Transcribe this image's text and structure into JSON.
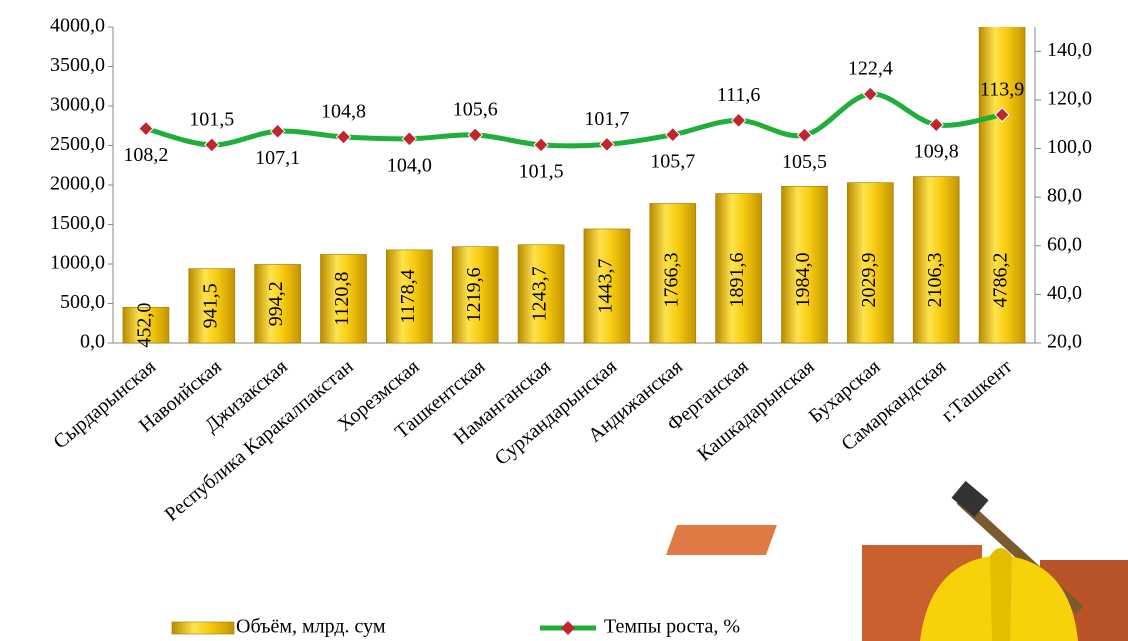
{
  "chart_data": {
    "type": "bar-line",
    "categories": [
      "Сырдарынская",
      "Навоийская",
      "Джизакская",
      "Республика Каракалпакстан",
      "Хорезмская",
      "Ташкентская",
      "Наманганская",
      "Сурхандарынская",
      "Андижанская",
      "Ферганская",
      "Кашкадарынская",
      "Бухарская",
      "Самаркандская",
      "г.Ташкент"
    ],
    "series": [
      {
        "name": "Объём, млрд. сум",
        "color": "#f2c200",
        "axis": "y",
        "values": [
          452.0,
          941.5,
          994.2,
          1120.8,
          1178.4,
          1219.6,
          1243.7,
          1443.7,
          1766.3,
          1891.6,
          1984.0,
          2029.9,
          2106.3,
          4786.2
        ],
        "value_labels": [
          "452,0",
          "941,5",
          "994,2",
          "1120,8",
          "1178,4",
          "1219,6",
          "1243,7",
          "1443,7",
          "1766,3",
          "1891,6",
          "1984,0",
          "2029,9",
          "2106,3",
          "4786,2"
        ]
      },
      {
        "name": "Темпы роста, %",
        "color": "#1fae3a",
        "marker_color": "#c0262c",
        "axis": "y2",
        "values": [
          108.2,
          101.5,
          107.1,
          104.8,
          104.0,
          105.6,
          101.5,
          101.7,
          105.7,
          111.6,
          105.5,
          122.4,
          109.8,
          113.9
        ],
        "value_labels": [
          "108,2",
          "101,5",
          "107,1",
          "104,8",
          "104,0",
          "105,6",
          "101,5",
          "101,7",
          "105,7",
          "111,6",
          "105,5",
          "122,4",
          "109,8",
          "113,9"
        ]
      }
    ],
    "ylim": [
      0,
      4000
    ],
    "yticks": [
      {
        "value": 0,
        "label": "0,0"
      },
      {
        "value": 500,
        "label": "500,0"
      },
      {
        "value": 1000,
        "label": "1000,0"
      },
      {
        "value": 1500,
        "label": "1500,0"
      },
      {
        "value": 2000,
        "label": "2000,0"
      },
      {
        "value": 2500,
        "label": "2500,0"
      },
      {
        "value": 3000,
        "label": "3000,0"
      },
      {
        "value": 3500,
        "label": "3500,0"
      },
      {
        "value": 4000,
        "label": "4000,0"
      }
    ],
    "y2lim": [
      20,
      150
    ],
    "y2ticks": [
      {
        "value": 20,
        "label": "20,0"
      },
      {
        "value": 40,
        "label": "40,0"
      },
      {
        "value": 60,
        "label": "60,0"
      },
      {
        "value": 80,
        "label": "80,0"
      },
      {
        "value": 100,
        "label": "100,0"
      },
      {
        "value": 120,
        "label": "120,0"
      },
      {
        "value": 140,
        "label": "140,0"
      }
    ],
    "legend": "bottom"
  }
}
